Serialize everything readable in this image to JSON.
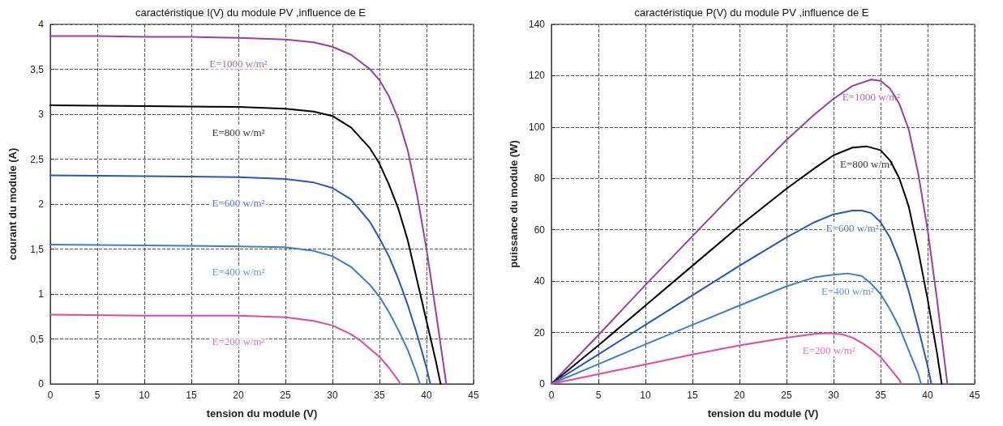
{
  "chart_data": [
    {
      "type": "line",
      "title": "caractéristique I(V) du module PV ,influence de E",
      "xlabel": "tension du module (V)",
      "ylabel": "courant du module (A)",
      "xlim": [
        0,
        45
      ],
      "xticks": [
        0,
        5,
        10,
        15,
        20,
        25,
        30,
        35,
        40,
        45
      ],
      "ylim": [
        0,
        4
      ],
      "yticks": [
        0,
        {
          "value": 0.5,
          "label": "0,5"
        },
        1,
        {
          "value": 1.5,
          "label": "1,5"
        },
        2,
        {
          "value": 2.5,
          "label": "2,5"
        },
        3,
        {
          "value": 3.5,
          "label": "3,5"
        },
        4
      ],
      "grid": true,
      "legend": false,
      "marker": "none",
      "line_style": "solid",
      "series": [
        {
          "name": "E=1000 w/m²",
          "color": "#9b3fa0",
          "x": [
            0,
            5,
            10,
            15,
            20,
            25,
            28,
            30,
            32,
            34,
            35,
            36,
            37,
            38,
            39,
            40,
            41,
            42.1
          ],
          "values": [
            3.87,
            3.87,
            3.86,
            3.86,
            3.85,
            3.83,
            3.8,
            3.75,
            3.66,
            3.5,
            3.38,
            3.2,
            2.95,
            2.6,
            2.1,
            1.5,
            0.8,
            0
          ]
        },
        {
          "name": "E=800 w/m²",
          "color": "#000000",
          "x": [
            0,
            10,
            20,
            25,
            28,
            30,
            32,
            34,
            35,
            36,
            37,
            38,
            39,
            40,
            41,
            41.5
          ],
          "values": [
            3.1,
            3.09,
            3.08,
            3.06,
            3.03,
            2.98,
            2.85,
            2.62,
            2.45,
            2.22,
            1.95,
            1.6,
            1.15,
            0.7,
            0.25,
            0
          ]
        },
        {
          "name": "E=600 w/m²",
          "color": "#2855b8",
          "x": [
            0,
            10,
            20,
            25,
            28,
            30,
            32,
            34,
            35,
            36,
            37,
            38,
            39,
            40,
            40.4
          ],
          "values": [
            2.32,
            2.31,
            2.3,
            2.28,
            2.24,
            2.18,
            2.05,
            1.8,
            1.62,
            1.42,
            1.17,
            0.88,
            0.55,
            0.18,
            0
          ]
        },
        {
          "name": "E=400 w/m²",
          "color": "#3a7fcf",
          "x": [
            0,
            10,
            20,
            25,
            28,
            30,
            32,
            34,
            35,
            36,
            37,
            38,
            39,
            39.3
          ],
          "values": [
            1.55,
            1.54,
            1.53,
            1.52,
            1.48,
            1.42,
            1.3,
            1.1,
            0.97,
            0.8,
            0.6,
            0.38,
            0.1,
            0
          ]
        },
        {
          "name": "E=200 w/m²",
          "color": "#e8489a",
          "x": [
            0,
            10,
            20,
            25,
            28,
            30,
            32,
            33,
            34,
            35,
            36,
            37,
            37.2
          ],
          "values": [
            0.77,
            0.76,
            0.76,
            0.74,
            0.7,
            0.65,
            0.55,
            0.48,
            0.39,
            0.3,
            0.18,
            0.04,
            0
          ]
        }
      ]
    },
    {
      "type": "line",
      "title": "caractéristique P(V) du module PV ,influence de E",
      "xlabel": "tension du module (V)",
      "ylabel": "puissance du module (W)",
      "xlim": [
        0,
        45
      ],
      "xticks": [
        0,
        5,
        10,
        15,
        20,
        25,
        30,
        35,
        40,
        45
      ],
      "ylim": [
        0,
        140
      ],
      "yticks": [
        0,
        20,
        40,
        60,
        80,
        100,
        120,
        140
      ],
      "grid": true,
      "legend": false,
      "marker": "none",
      "line_style": "solid",
      "series": [
        {
          "name": "E=1000 w/m²",
          "color": "#9b3fa0",
          "x": [
            0,
            5,
            10,
            15,
            20,
            25,
            28,
            30,
            32,
            34,
            35,
            36,
            37,
            38,
            39,
            40,
            41,
            42.1
          ],
          "values": [
            0,
            19,
            38.5,
            57.5,
            76.5,
            95,
            105,
            111,
            116,
            118.5,
            118,
            115,
            109,
            99,
            82,
            60,
            33,
            0
          ]
        },
        {
          "name": "E=800 w/m²",
          "color": "#000000",
          "x": [
            0,
            5,
            10,
            15,
            20,
            25,
            28,
            30,
            32,
            33.5,
            35,
            36,
            37,
            38,
            39,
            40,
            41,
            41.5
          ],
          "values": [
            0,
            15,
            30.5,
            46,
            61.5,
            76,
            84,
            89,
            92,
            92.5,
            91,
            87,
            80,
            69,
            52,
            33,
            12,
            0
          ]
        },
        {
          "name": "E=600 w/m²",
          "color": "#2855b8",
          "x": [
            0,
            5,
            10,
            15,
            20,
            25,
            28,
            30,
            32,
            33,
            34,
            35,
            36,
            37,
            38,
            39,
            40,
            40.4
          ],
          "values": [
            0,
            11.5,
            23,
            34.5,
            46,
            57,
            63,
            66,
            67.5,
            67.5,
            66.5,
            63,
            57,
            48,
            36,
            22,
            7,
            0
          ]
        },
        {
          "name": "E=400 w/m²",
          "color": "#3a7fcf",
          "x": [
            0,
            5,
            10,
            15,
            20,
            25,
            28,
            30,
            31.5,
            33,
            34,
            35,
            36,
            37,
            38,
            39,
            39.3
          ],
          "values": [
            0,
            7.7,
            15.4,
            23,
            30.5,
            38,
            41.5,
            42.5,
            43,
            42,
            39,
            35,
            29,
            22,
            13,
            4,
            0
          ]
        },
        {
          "name": "E=200 w/m²",
          "color": "#e8489a",
          "x": [
            0,
            5,
            10,
            15,
            20,
            25,
            28,
            29.5,
            31,
            32,
            33,
            34,
            35,
            36,
            37,
            37.2
          ],
          "values": [
            0,
            3.8,
            7.6,
            11.4,
            15,
            18,
            19.5,
            19.8,
            19.2,
            18,
            16,
            13.5,
            10.5,
            6,
            1.5,
            0
          ]
        }
      ]
    }
  ]
}
